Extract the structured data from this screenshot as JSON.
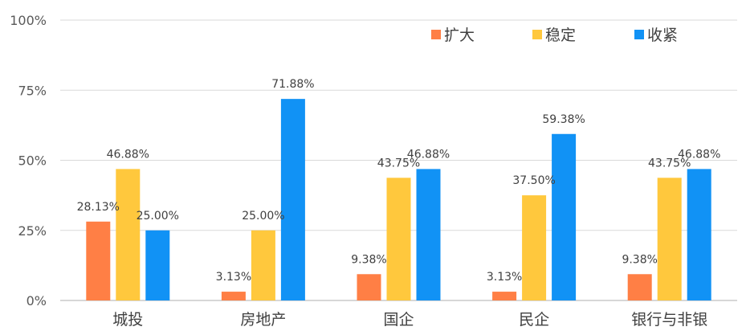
{
  "chart_data": {
    "type": "bar",
    "categories": [
      "城投",
      "房地产",
      "国企",
      "民企",
      "银行与非银"
    ],
    "series": [
      {
        "name": "扩大",
        "color": "#FF7F45",
        "values": [
          28.13,
          3.13,
          9.38,
          3.13,
          9.38
        ]
      },
      {
        "name": "稳定",
        "color": "#FFC83D",
        "values": [
          46.88,
          25.0,
          43.75,
          37.5,
          43.75
        ]
      },
      {
        "name": "收紧",
        "color": "#1192F5",
        "values": [
          25.0,
          71.88,
          46.88,
          59.38,
          46.88
        ]
      }
    ],
    "yticks": [
      "0%",
      "25%",
      "50%",
      "75%",
      "100%"
    ],
    "ytick_values": [
      0,
      25,
      50,
      75,
      100
    ],
    "ylim": [
      0,
      100
    ],
    "data_labels": [
      [
        "28.13%",
        "3.13%",
        "9.38%",
        "3.13%",
        "9.38%"
      ],
      [
        "46.88%",
        "25.00%",
        "43.75%",
        "37.50%",
        "43.75%"
      ],
      [
        "25.00%",
        "71.88%",
        "46.88%",
        "59.38%",
        "46.88%"
      ]
    ],
    "grid": true,
    "legend_position": "top-right"
  }
}
